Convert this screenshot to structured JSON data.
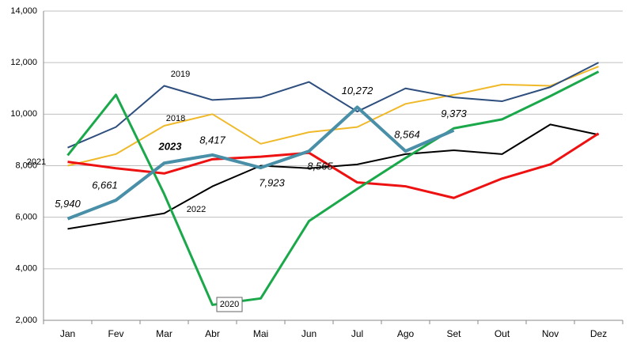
{
  "chart_data": {
    "type": "line",
    "categories": [
      "Jan",
      "Fev",
      "Mar",
      "Abr",
      "Mai",
      "Jun",
      "Jul",
      "Ago",
      "Set",
      "Out",
      "Nov",
      "Dez"
    ],
    "ylim": [
      2000,
      14000
    ],
    "yticks": [
      {
        "value": 2000,
        "label": "2,000"
      },
      {
        "value": 4000,
        "label": "4,000"
      },
      {
        "value": 6000,
        "label": "6,000"
      },
      {
        "value": 8000,
        "label": "8,000"
      },
      {
        "value": 10000,
        "label": "10,000"
      },
      {
        "value": 12000,
        "label": "12,000"
      },
      {
        "value": 14000,
        "label": "14,000"
      }
    ],
    "grid": true,
    "series": [
      {
        "name": "2018",
        "color": "#f0b92a",
        "values": [
          8000,
          8450,
          9550,
          10000,
          8850,
          9300,
          9500,
          10400,
          10750,
          11150,
          11100,
          11850
        ]
      },
      {
        "name": "2019",
        "color": "#2e4e7e",
        "values": [
          8700,
          9500,
          11100,
          10550,
          10650,
          11250,
          10100,
          11000,
          10650,
          10500,
          11050,
          12000
        ]
      },
      {
        "name": "2022",
        "color": "#000000",
        "values": [
          5550,
          5850,
          6150,
          7200,
          8000,
          7900,
          8050,
          8450,
          8600,
          8450,
          9600,
          9200
        ]
      },
      {
        "name": "2021",
        "color": "#ee1111",
        "values": [
          8150,
          7900,
          7700,
          8250,
          8350,
          8500,
          7350,
          7200,
          6750,
          7500,
          8050,
          9250
        ]
      },
      {
        "name": "2020",
        "color": "#1aa84a",
        "values": [
          8400,
          10750,
          6900,
          2600,
          2850,
          5850,
          7100,
          8300,
          9450,
          9800,
          10700,
          11650
        ]
      },
      {
        "name": "2023",
        "color": "#4a8fa8",
        "values": [
          5940,
          6661,
          8100,
          8417,
          7923,
          8565,
          10272,
          8564,
          9373,
          null,
          null,
          null
        ],
        "value_labels": [
          "5,940",
          "6,661",
          null,
          "8,417",
          "7,923",
          "8,565",
          "10,272",
          "8,564",
          "9,373",
          null,
          null,
          null
        ]
      }
    ]
  }
}
